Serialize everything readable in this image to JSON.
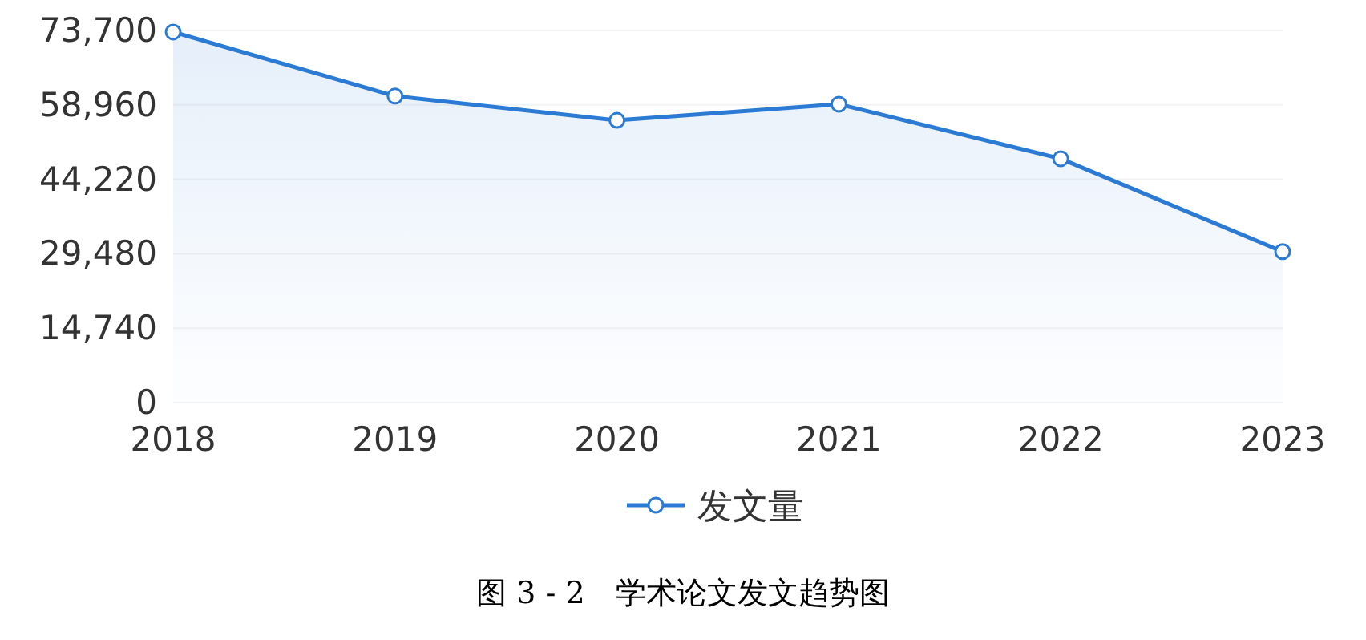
{
  "chart_data": {
    "type": "area",
    "categories": [
      "2018",
      "2019",
      "2020",
      "2021",
      "2022",
      "2023"
    ],
    "series": [
      {
        "name": "发文量",
        "color": "#2b7bd4",
        "values": [
          73400,
          60700,
          55900,
          59100,
          48300,
          29900
        ]
      }
    ],
    "ylim": [
      0,
      73700
    ],
    "yticks": [
      0,
      {
        "value": 14740,
        "label": "14,740"
      },
      {
        "value": 29480,
        "label": "29,480"
      },
      {
        "value": 44220,
        "label": "44,220"
      },
      {
        "value": 58960,
        "label": "58,960"
      },
      {
        "value": 73700,
        "label": "73,700"
      }
    ],
    "grid": "y",
    "legend": "bottom",
    "marker": "circle",
    "annotations": [
      "图 3 - 2　学术论文发文趋势图"
    ]
  }
}
